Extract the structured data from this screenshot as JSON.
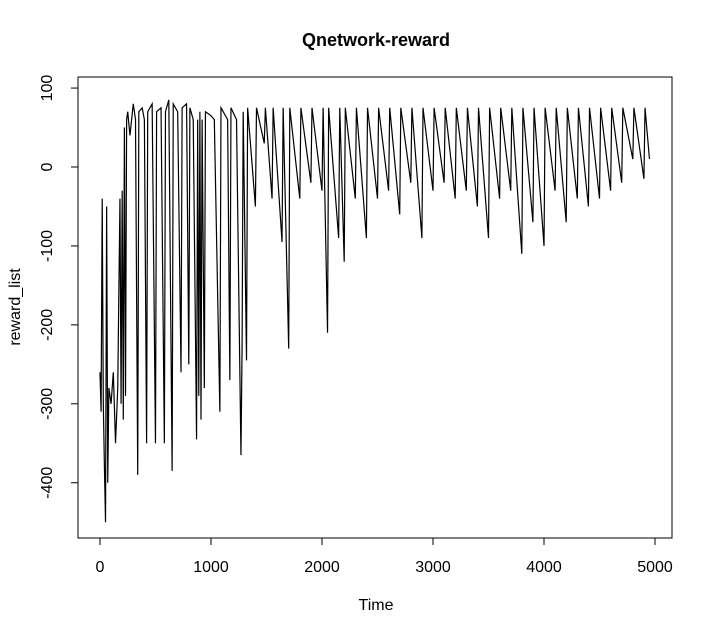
{
  "chart_data": {
    "type": "line",
    "title": "Qnetwork-reward",
    "x_label": "Time",
    "y_label": "reward_list",
    "xlim": [
      -198,
      5153
    ],
    "ylim": [
      -470,
      114
    ],
    "xticks": [
      0,
      1000,
      2000,
      3000,
      4000,
      5000
    ],
    "yticks": [
      -400,
      -300,
      -200,
      -100,
      0,
      100
    ],
    "color": "#000000",
    "x": [
      0,
      10,
      20,
      30,
      40,
      50,
      60,
      70,
      80,
      100,
      120,
      140,
      160,
      180,
      190,
      200,
      210,
      220,
      230,
      240,
      250,
      270,
      300,
      320,
      340,
      350,
      380,
      400,
      420,
      430,
      470,
      500,
      510,
      550,
      580,
      590,
      620,
      650,
      660,
      700,
      730,
      740,
      780,
      800,
      810,
      840,
      870,
      880,
      890,
      900,
      910,
      920,
      940,
      950,
      1000,
      1030,
      1080,
      1090,
      1150,
      1170,
      1180,
      1230,
      1270,
      1280,
      1290,
      1320,
      1330,
      1400,
      1410,
      1480,
      1490,
      1550,
      1560,
      1640,
      1650,
      1700,
      1710,
      1800,
      1810,
      1900,
      1910,
      2000,
      2010,
      2050,
      2060,
      2150,
      2160,
      2200,
      2210,
      2300,
      2310,
      2400,
      2410,
      2500,
      2510,
      2600,
      2610,
      2700,
      2710,
      2800,
      2810,
      2900,
      2910,
      3000,
      3010,
      3100,
      3110,
      3200,
      3210,
      3300,
      3310,
      3400,
      3410,
      3500,
      3510,
      3600,
      3610,
      3700,
      3710,
      3800,
      3810,
      3900,
      3910,
      4000,
      4010,
      4100,
      4110,
      4200,
      4210,
      4300,
      4310,
      4400,
      4410,
      4500,
      4510,
      4600,
      4610,
      4700,
      4710,
      4800,
      4810,
      4900,
      4910,
      4950
    ],
    "values": [
      -260,
      -310,
      -40,
      -300,
      -380,
      -450,
      -50,
      -400,
      -280,
      -300,
      -260,
      -350,
      -280,
      -40,
      -300,
      -30,
      -320,
      50,
      -290,
      60,
      70,
      40,
      80,
      60,
      -390,
      70,
      75,
      60,
      -350,
      70,
      80,
      -350,
      70,
      75,
      -350,
      70,
      85,
      -385,
      80,
      70,
      -260,
      75,
      80,
      -250,
      75,
      60,
      -345,
      60,
      -290,
      70,
      -320,
      60,
      -280,
      70,
      65,
      60,
      -310,
      75,
      60,
      -270,
      75,
      60,
      -365,
      -230,
      70,
      -245,
      75,
      -50,
      75,
      30,
      75,
      -40,
      75,
      -95,
      75,
      -230,
      75,
      -40,
      75,
      -20,
      75,
      -30,
      75,
      -210,
      75,
      -90,
      75,
      -120,
      75,
      -40,
      75,
      -90,
      75,
      -40,
      75,
      -30,
      75,
      -60,
      75,
      -20,
      75,
      -90,
      75,
      -30,
      75,
      -20,
      75,
      -40,
      75,
      -30,
      75,
      -50,
      75,
      -90,
      75,
      -40,
      75,
      -30,
      75,
      -110,
      75,
      -70,
      75,
      -100,
      75,
      -30,
      75,
      -70,
      75,
      -40,
      75,
      -50,
      75,
      -40,
      75,
      -30,
      75,
      -20,
      75,
      10,
      75,
      -15,
      75,
      10
    ]
  }
}
